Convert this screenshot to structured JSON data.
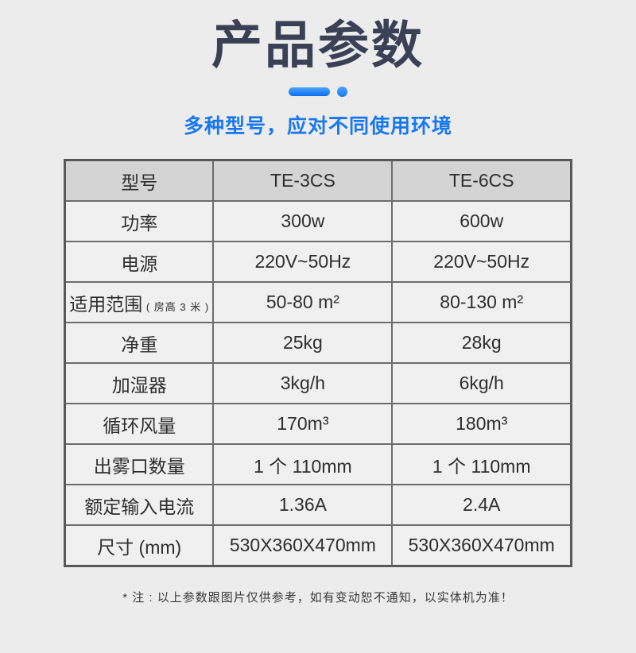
{
  "page": {
    "title": "产品参数",
    "subtitle": "多种型号，应对不同使用环境",
    "note": "* 注 : 以上参数跟图片仅供参考，如有变动恕不通知，以实体机为准！"
  },
  "colors": {
    "accent_blue": "#1777f1",
    "accent_blue_dark": "#0c6ef0",
    "title_color": "#3a4156",
    "header_row_bg": "#d4d4d4",
    "data_row_bg": "#f0f0f0",
    "table_border": "#6c6c6c",
    "page_bg": "#ececec"
  },
  "table": {
    "header": {
      "label": "型号",
      "model1": "TE-3CS",
      "model2": "TE-6CS"
    },
    "rows": [
      {
        "label": "功率",
        "v1": "300w",
        "v2": "600w"
      },
      {
        "label": "电源",
        "v1": "220V~50Hz",
        "v2": "220V~50Hz"
      },
      {
        "label": "适用范围",
        "label_small": " ( 房高 3 米 )",
        "v1": "50-80 m²",
        "v2": "80-130 m²"
      },
      {
        "label": "净重",
        "v1": "25kg",
        "v2": "28kg"
      },
      {
        "label": "加湿器",
        "v1": "3kg/h",
        "v2": "6kg/h"
      },
      {
        "label": "循环风量",
        "v1": "170m³",
        "v2": "180m³"
      },
      {
        "label": "出雾口数量",
        "v1": "1 个 110mm",
        "v2": "1 个 110mm"
      },
      {
        "label": "额定输入电流",
        "v1": "1.36A",
        "v2": "2.4A"
      },
      {
        "label": "尺寸 (mm)",
        "v1": "530X360X470mm",
        "v2": "530X360X470mm"
      }
    ]
  }
}
